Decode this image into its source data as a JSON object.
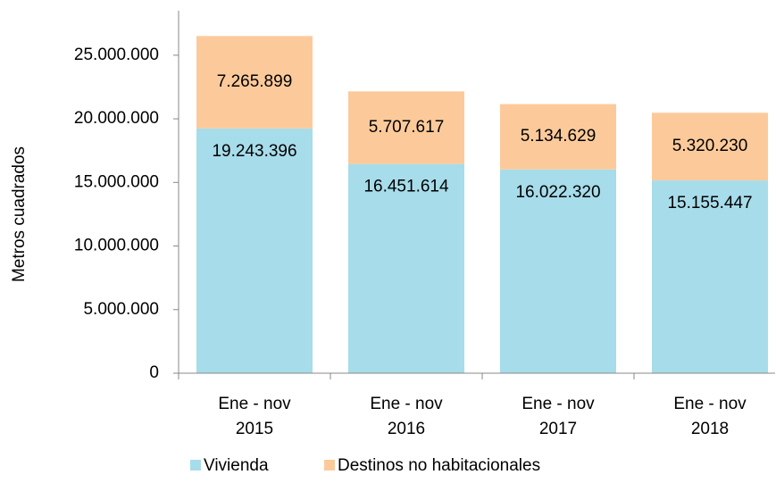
{
  "chart_data": {
    "type": "stacked-bar",
    "y_label": "Metros cuadrados",
    "categories": [
      [
        "Ene - nov",
        "2015"
      ],
      [
        "Ene - nov",
        "2016"
      ],
      [
        "Ene - nov",
        "2017"
      ],
      [
        "Ene - nov",
        "2018"
      ]
    ],
    "series": [
      {
        "name": "Vivienda",
        "color": "#a7dcea",
        "values": [
          19243396,
          16451614,
          16022320,
          15155447
        ],
        "value_labels": [
          "19.243.396",
          "16.451.614",
          "16.022.320",
          "15.155.447"
        ]
      },
      {
        "name": "Destinos no habitacionales",
        "color": "#fcca9a",
        "values": [
          7265899,
          5707617,
          5134629,
          5320230
        ],
        "value_labels": [
          "7.265.899",
          "5.707.617",
          "5.134.629",
          "5.320.230"
        ]
      }
    ],
    "ylim": [
      0,
      28500000
    ],
    "yticks": [
      0,
      {
        "value": 5000000,
        "label": "5.000.000"
      },
      {
        "value": 10000000,
        "label": "10.000.000"
      },
      {
        "value": 15000000,
        "label": "15.000.000"
      },
      {
        "value": 20000000,
        "label": "20.000.000"
      },
      {
        "value": 25000000,
        "label": "25.000.000"
      }
    ],
    "grid": false,
    "legend": "bottom"
  }
}
